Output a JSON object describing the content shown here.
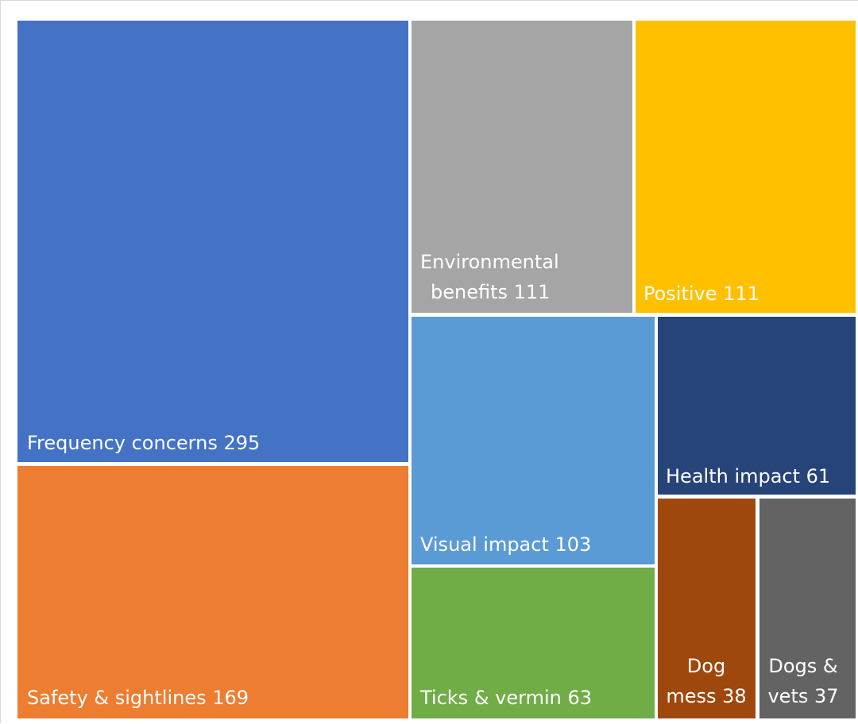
{
  "chart_data": {
    "type": "treemap",
    "title": "",
    "items": [
      {
        "label": "Frequency concerns",
        "value": 295,
        "color": "#4472C4"
      },
      {
        "label": "Safety & sightlines",
        "value": 169,
        "color": "#ED7D31"
      },
      {
        "label": "Environmental benefits",
        "value": 111,
        "color": "#A5A5A5"
      },
      {
        "label": "Positive",
        "value": 111,
        "color": "#FFC000"
      },
      {
        "label": "Visual impact",
        "value": 103,
        "color": "#5B9BD5"
      },
      {
        "label": "Ticks & vermin",
        "value": 63,
        "color": "#70AD47"
      },
      {
        "label": "Health impact",
        "value": 61,
        "color": "#264478"
      },
      {
        "label": "Dog mess",
        "value": 38,
        "color": "#9E480E"
      },
      {
        "label": "Dogs & vets",
        "value": 37,
        "color": "#636363"
      }
    ],
    "labels": [
      [
        "Frequency concerns 295"
      ],
      [
        "Safety & sightlines  169"
      ],
      [
        "Environmental",
        "benefits 111"
      ],
      [
        "Positive 111"
      ],
      [
        "Visual impact 103"
      ],
      [
        "Ticks & vermin 63"
      ],
      [
        "Health impact 61"
      ],
      [
        "Dog",
        "mess 38"
      ],
      [
        "Dogs &",
        "vets 37"
      ]
    ]
  }
}
